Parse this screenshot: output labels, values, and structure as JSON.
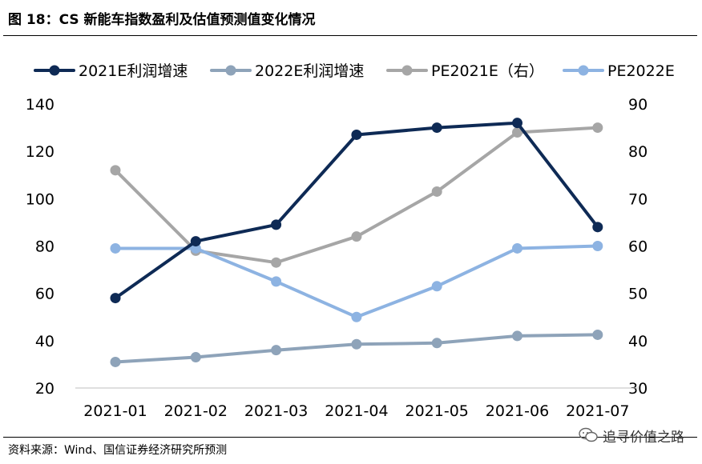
{
  "title": "图 18：CS 新能车指数盈利及估值预测值变化情况",
  "source": "资料来源：Wind、国信证券经济研究所预测",
  "brand": "追寻价值之路",
  "chart_data": {
    "type": "line",
    "categories": [
      "2021-01",
      "2021-02",
      "2021-03",
      "2021-04",
      "2021-05",
      "2021-06",
      "2021-07"
    ],
    "left_axis": {
      "ylim": [
        20,
        140
      ],
      "ticks": [
        "140",
        "120",
        "100",
        "80",
        "60",
        "40",
        "20"
      ]
    },
    "right_axis": {
      "ylim": [
        30,
        90
      ],
      "ticks": [
        "90",
        "80",
        "70",
        "60",
        "50",
        "40",
        "30"
      ]
    },
    "grid": false,
    "legend_position": "top",
    "series": [
      {
        "name": "2021E利润增速",
        "axis": "left",
        "color": "#0e2a55",
        "values": [
          58,
          82,
          89,
          127,
          130,
          132,
          88
        ]
      },
      {
        "name": "2022E利润增速",
        "axis": "left",
        "color": "#8ea3b9",
        "values": [
          31,
          33,
          36,
          38.5,
          39,
          42,
          42.5
        ]
      },
      {
        "name": "PE2021E（右）",
        "axis": "right",
        "color": "#a6a6a6",
        "values": [
          76,
          59,
          56.5,
          62,
          71.5,
          84,
          85
        ]
      },
      {
        "name": "PE2022E",
        "axis": "right",
        "color": "#8db3e2",
        "values": [
          59.5,
          59.5,
          52.5,
          45,
          51.5,
          59.5,
          60
        ]
      }
    ]
  }
}
